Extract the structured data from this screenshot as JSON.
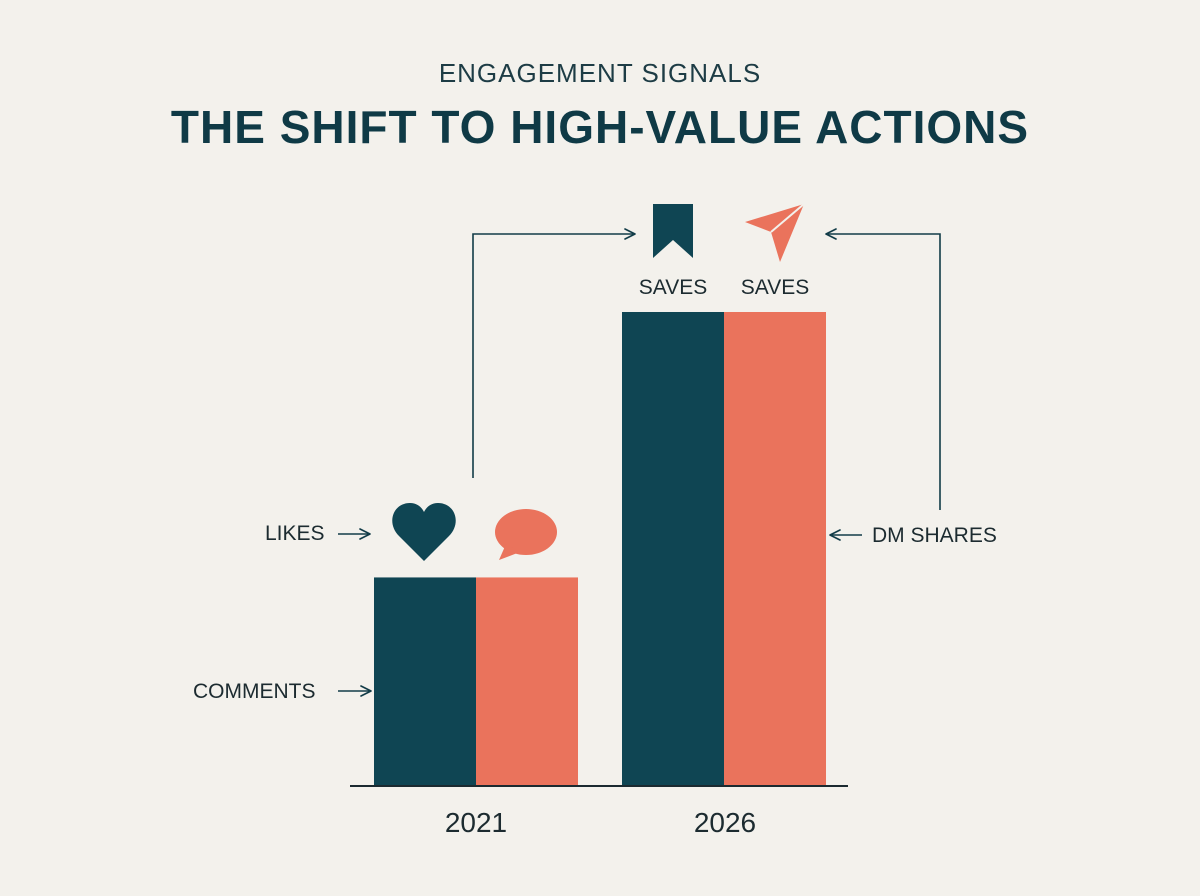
{
  "header": {
    "kicker": "ENGAGEMENT SIGNALS",
    "headline": "THE SHIFT TO HIGH-VALUE ACTIONS"
  },
  "colors": {
    "teal": "#0f4553",
    "coral": "#ea735c",
    "background": "#f3f1ec",
    "text": "#123c48"
  },
  "chart_data": {
    "type": "bar",
    "categories": [
      "2021",
      "2026"
    ],
    "series": [
      {
        "color": "#0f4553",
        "values": [
          44,
          100
        ]
      },
      {
        "color": "#ea735c",
        "values": [
          44,
          100
        ]
      }
    ],
    "ylim": [
      0,
      100
    ],
    "grid": false,
    "legend": "none",
    "annotations": {
      "likes": "LIKES",
      "comments": "COMMENTS",
      "saves_left": "SAVES",
      "saves_right": "SAVES",
      "dm_shares": "DM SHARES"
    },
    "icons": {
      "likes": "heart-icon",
      "comments": "speech-bubble-icon",
      "saves": "bookmark-icon",
      "shares": "paper-plane-icon"
    }
  }
}
